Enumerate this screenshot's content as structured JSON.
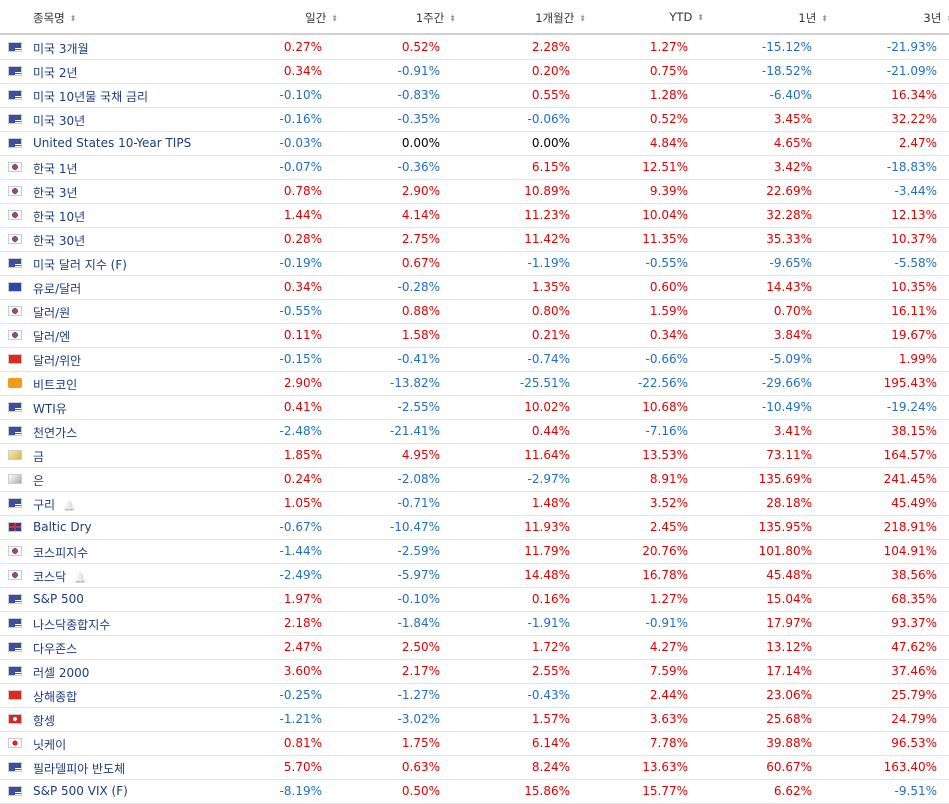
{
  "table": {
    "columns": [
      "종목명",
      "일간",
      "1주간",
      "1개월간",
      "YTD",
      "1년",
      "3년"
    ],
    "rows": [
      [
        "미국 3개월",
        "0.27%",
        "0.52%",
        "2.28%",
        "1.27%",
        "-15.12%",
        "-21.93%"
      ],
      [
        "미국 2년",
        "0.34%",
        "-0.91%",
        "0.20%",
        "0.75%",
        "-18.52%",
        "-21.09%"
      ],
      [
        "미국 10년물 국채 금리",
        "-0.10%",
        "-0.83%",
        "0.55%",
        "1.28%",
        "-6.40%",
        "16.34%"
      ],
      [
        "미국 30년",
        "-0.16%",
        "-0.35%",
        "-0.06%",
        "0.52%",
        "3.45%",
        "32.22%"
      ],
      [
        "United States 10-Year TIPS",
        "-0.03%",
        "0.00%",
        "0.00%",
        "4.84%",
        "4.65%",
        "2.47%"
      ],
      [
        "한국 1년",
        "-0.07%",
        "-0.36%",
        "6.15%",
        "12.51%",
        "3.42%",
        "-18.83%"
      ],
      [
        "한국 3년",
        "0.78%",
        "2.90%",
        "10.89%",
        "9.39%",
        "22.69%",
        "-3.44%"
      ],
      [
        "한국 10년",
        "1.44%",
        "4.14%",
        "11.23%",
        "10.04%",
        "32.28%",
        "12.13%"
      ],
      [
        "한국 30년",
        "0.28%",
        "2.75%",
        "11.42%",
        "11.35%",
        "35.33%",
        "10.37%"
      ],
      [
        "미국 달러 지수 (F)",
        "-0.19%",
        "0.67%",
        "-1.19%",
        "-0.55%",
        "-9.65%",
        "-5.58%"
      ],
      [
        "유로/달러",
        "0.34%",
        "-0.28%",
        "1.35%",
        "0.60%",
        "14.43%",
        "10.35%"
      ],
      [
        "달러/원",
        "-0.55%",
        "0.88%",
        "0.80%",
        "1.59%",
        "0.70%",
        "16.11%"
      ],
      [
        "달러/엔",
        "0.11%",
        "1.58%",
        "0.21%",
        "0.34%",
        "3.84%",
        "19.67%"
      ],
      [
        "달러/위안",
        "-0.15%",
        "-0.41%",
        "-0.74%",
        "-0.66%",
        "-5.09%",
        "1.99%"
      ],
      [
        "비트코인",
        "2.90%",
        "-13.82%",
        "-25.51%",
        "-22.56%",
        "-29.66%",
        "195.43%"
      ],
      [
        "WTI유",
        "0.41%",
        "-2.55%",
        "10.02%",
        "10.68%",
        "-10.49%",
        "-19.24%"
      ],
      [
        "천연가스",
        "-2.48%",
        "-21.41%",
        "0.44%",
        "-7.16%",
        "3.41%",
        "38.15%"
      ],
      [
        "금",
        "1.85%",
        "4.95%",
        "11.64%",
        "13.53%",
        "73.11%",
        "164.57%"
      ],
      [
        "은",
        "0.24%",
        "-2.08%",
        "-2.97%",
        "8.91%",
        "135.69%",
        "241.45%"
      ],
      [
        "구리",
        "1.05%",
        "-0.71%",
        "1.48%",
        "3.52%",
        "28.18%",
        "45.49%"
      ],
      [
        "Baltic Dry",
        "-0.67%",
        "-10.47%",
        "11.93%",
        "2.45%",
        "135.95%",
        "218.91%"
      ],
      [
        "코스피지수",
        "-1.44%",
        "-2.59%",
        "11.79%",
        "20.76%",
        "101.80%",
        "104.91%"
      ],
      [
        "코스닥",
        "-2.49%",
        "-5.97%",
        "14.48%",
        "16.78%",
        "45.48%",
        "38.56%"
      ],
      [
        "S&P 500",
        "1.97%",
        "-0.10%",
        "0.16%",
        "1.27%",
        "15.04%",
        "68.35%"
      ],
      [
        "나스닥종합지수",
        "2.18%",
        "-1.84%",
        "-1.91%",
        "-0.91%",
        "17.97%",
        "93.37%"
      ],
      [
        "다우존스",
        "2.47%",
        "2.50%",
        "1.72%",
        "4.27%",
        "13.12%",
        "47.62%"
      ],
      [
        "러셀 2000",
        "3.60%",
        "2.17%",
        "2.55%",
        "7.59%",
        "17.14%",
        "37.46%"
      ],
      [
        "상해종합",
        "-0.25%",
        "-1.27%",
        "-0.43%",
        "2.44%",
        "23.06%",
        "25.79%"
      ],
      [
        "항셍",
        "-1.21%",
        "-3.02%",
        "1.57%",
        "3.63%",
        "25.68%",
        "24.79%"
      ],
      [
        "닛케이",
        "0.81%",
        "1.75%",
        "6.14%",
        "7.78%",
        "39.88%",
        "96.53%"
      ],
      [
        "필라델피아 반도체",
        "5.70%",
        "0.63%",
        "8.24%",
        "13.63%",
        "60.67%",
        "163.40%"
      ],
      [
        "S&P 500 VIX (F)",
        "-8.19%",
        "0.50%",
        "15.86%",
        "15.77%",
        "6.62%",
        "-9.51%"
      ]
    ]
  }
}
